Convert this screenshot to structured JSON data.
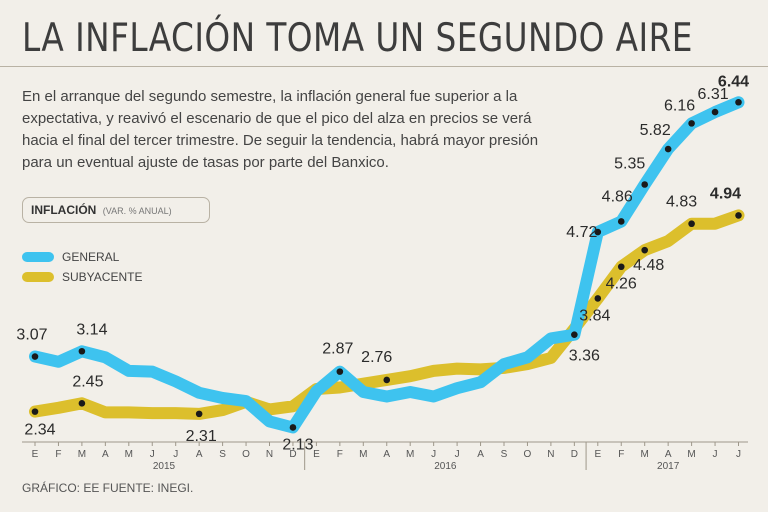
{
  "header": {
    "title": "LA INFLACIÓN TOMA UN SEGUNDO AIRE",
    "description": "En el arranque del segundo semestre, la inflación general fue superior a la expectativa, y reavivó el escenario de que el pico del alza en precios se verá hacia el final del tercer trimestre. De seguir la tendencia, habrá mayor presión para un eventual ajuste de tasas por parte del Banxico."
  },
  "indicator": {
    "label": "INFLACIÓN",
    "unit": "(VAR. % ANUAL)"
  },
  "legend": [
    {
      "name": "GENERAL",
      "color": "#3ec3ef"
    },
    {
      "name": "SUBYACENTE",
      "color": "#dcbf2c"
    }
  ],
  "footer": {
    "source": "GRÁFICO: EE  FUENTE: INEGI."
  },
  "chart_data": {
    "type": "line",
    "x": [
      "E",
      "F",
      "M",
      "A",
      "M",
      "J",
      "J",
      "A",
      "S",
      "O",
      "N",
      "D",
      "E",
      "F",
      "M",
      "A",
      "M",
      "J",
      "J",
      "A",
      "S",
      "O",
      "N",
      "D",
      "E",
      "F",
      "M",
      "A",
      "M",
      "J",
      "J"
    ],
    "year_labels": [
      {
        "label": "2015",
        "start": 0,
        "end": 11
      },
      {
        "label": "2016",
        "start": 12,
        "end": 23
      },
      {
        "label": "2017",
        "start": 24,
        "end": 30
      }
    ],
    "ylim": [
      1.5,
      7.0
    ],
    "series": [
      {
        "name": "GENERAL",
        "color": "#3ec3ef",
        "values": [
          3.07,
          3.0,
          3.14,
          3.06,
          2.88,
          2.87,
          2.74,
          2.59,
          2.52,
          2.48,
          2.21,
          2.13,
          2.61,
          2.87,
          2.6,
          2.54,
          2.6,
          2.54,
          2.65,
          2.73,
          2.97,
          3.06,
          3.31,
          3.36,
          4.72,
          4.86,
          5.35,
          5.82,
          6.16,
          6.31,
          6.44
        ],
        "labels": [
          {
            "i": 0,
            "text": "3.07"
          },
          {
            "i": 2,
            "text": "3.14"
          },
          {
            "i": 11,
            "text": "2.13"
          },
          {
            "i": 13,
            "text": "2.87"
          },
          {
            "i": 23,
            "text": "3.36"
          },
          {
            "i": 24,
            "text": "4.72"
          },
          {
            "i": 25,
            "text": "4.86"
          },
          {
            "i": 26,
            "text": "5.35"
          },
          {
            "i": 27,
            "text": "5.82"
          },
          {
            "i": 28,
            "text": "6.16"
          },
          {
            "i": 29,
            "text": "6.31"
          },
          {
            "i": 30,
            "text": "6.44",
            "bold": true
          }
        ]
      },
      {
        "name": "SUBYACENTE",
        "color": "#dcbf2c",
        "values": [
          2.34,
          2.39,
          2.45,
          2.33,
          2.33,
          2.32,
          2.32,
          2.31,
          2.36,
          2.47,
          2.37,
          2.41,
          2.64,
          2.66,
          2.71,
          2.76,
          2.81,
          2.88,
          2.91,
          2.9,
          2.92,
          2.97,
          3.05,
          3.44,
          3.84,
          4.26,
          4.48,
          4.6,
          4.83,
          4.83,
          4.94
        ],
        "labels": [
          {
            "i": 0,
            "text": "2.34"
          },
          {
            "i": 2,
            "text": "2.45"
          },
          {
            "i": 7,
            "text": "2.31"
          },
          {
            "i": 15,
            "text": "2.76"
          },
          {
            "i": 24,
            "text": "3.84"
          },
          {
            "i": 25,
            "text": "4.26"
          },
          {
            "i": 26,
            "text": "4.48"
          },
          {
            "i": 28,
            "text": "4.83"
          },
          {
            "i": 30,
            "text": "4.94",
            "bold": true
          }
        ]
      }
    ],
    "markers": {
      "GENERAL": [
        0,
        2,
        11,
        13,
        23,
        24,
        25,
        26,
        27,
        28,
        29,
        30
      ],
      "SUBYACENTE": [
        0,
        2,
        7,
        15,
        24,
        25,
        26,
        28,
        30
      ]
    },
    "xlabel": "",
    "ylabel": "",
    "grid": false
  }
}
